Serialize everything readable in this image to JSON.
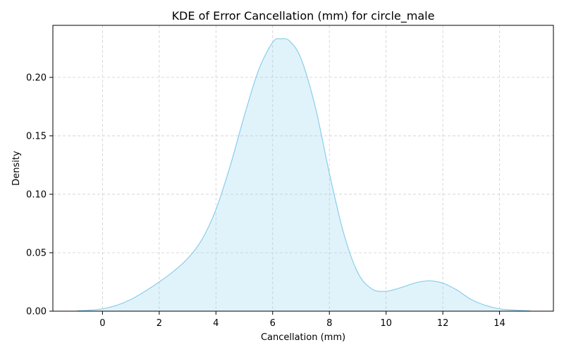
{
  "chart_data": {
    "type": "area",
    "title": "KDE of Error Cancellation (mm) for circle_male",
    "xlabel": "Cancellation (mm)",
    "ylabel": "Density",
    "xlim": [
      -1.75,
      15.9
    ],
    "ylim": [
      0,
      0.2445
    ],
    "xticks": [
      0,
      2,
      4,
      6,
      8,
      10,
      12,
      14
    ],
    "yticks": [
      0.0,
      0.05,
      0.1,
      0.15,
      0.2
    ],
    "ytick_format": 2,
    "grid": true,
    "series": [
      {
        "color": "#87ceeb",
        "fill_color": "#87ceeb",
        "fill_opacity": 0.25,
        "x": [
          -0.9,
          -0.5,
          0,
          0.5,
          1,
          1.5,
          2,
          2.5,
          3,
          3.5,
          4,
          4.5,
          5,
          5.5,
          6,
          6.3,
          6.6,
          7,
          7.5,
          8,
          8.5,
          9,
          9.5,
          10,
          10.5,
          11,
          11.5,
          12,
          12.5,
          13,
          13.5,
          14,
          14.5,
          15.1
        ],
        "y": [
          0.0003,
          0.0008,
          0.002,
          0.005,
          0.01,
          0.017,
          0.025,
          0.034,
          0.045,
          0.061,
          0.087,
          0.124,
          0.167,
          0.206,
          0.23,
          0.233,
          0.231,
          0.216,
          0.175,
          0.118,
          0.067,
          0.033,
          0.019,
          0.017,
          0.02,
          0.024,
          0.026,
          0.024,
          0.018,
          0.01,
          0.005,
          0.002,
          0.001,
          0.0002
        ]
      }
    ]
  }
}
